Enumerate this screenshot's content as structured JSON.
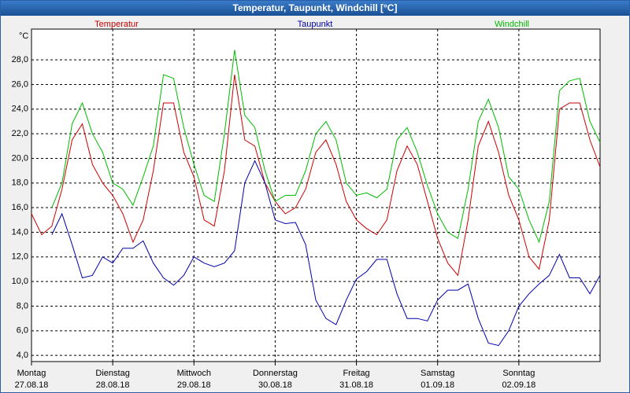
{
  "chart_data": {
    "type": "line",
    "title": "Temperatur, Taupunkt, Windchill [°C]",
    "ylabel": "°C",
    "x": [
      0,
      0.125,
      0.25,
      0.375,
      0.5,
      0.625,
      0.75,
      0.875,
      1,
      1.125,
      1.25,
      1.375,
      1.5,
      1.625,
      1.75,
      1.875,
      2,
      2.125,
      2.25,
      2.375,
      2.5,
      2.625,
      2.75,
      2.875,
      3,
      3.125,
      3.25,
      3.375,
      3.5,
      3.625,
      3.75,
      3.875,
      4,
      4.125,
      4.25,
      4.375,
      4.5,
      4.625,
      4.75,
      4.875,
      5,
      5.125,
      5.25,
      5.375,
      5.5,
      5.625,
      5.75,
      5.875,
      6,
      6.125,
      6.25,
      6.375,
      6.5,
      6.625,
      6.75,
      6.875,
      7
    ],
    "xlim": [
      0,
      7
    ],
    "xticks": [
      {
        "value": 0,
        "label": [
          "Montag",
          "27.08.18"
        ]
      },
      {
        "value": 1,
        "label": [
          "Dienstag",
          "28.08.18"
        ]
      },
      {
        "value": 2,
        "label": [
          "Mittwoch",
          "29.08.18"
        ]
      },
      {
        "value": 3,
        "label": [
          "Donnerstag",
          "30.08.18"
        ]
      },
      {
        "value": 4,
        "label": [
          "Freitag",
          "31.08.18"
        ]
      },
      {
        "value": 5,
        "label": [
          "Samstag",
          "01.09.18"
        ]
      },
      {
        "value": 6,
        "label": [
          "Sonntag",
          "02.09.18"
        ]
      }
    ],
    "ylim": [
      3.5,
      30.5
    ],
    "yticks": [
      {
        "value": 4,
        "label": "4,0"
      },
      {
        "value": 6,
        "label": "6,0"
      },
      {
        "value": 8,
        "label": "8,0"
      },
      {
        "value": 10,
        "label": "10,0"
      },
      {
        "value": 12,
        "label": "12,0"
      },
      {
        "value": 14,
        "label": "14,0"
      },
      {
        "value": 16,
        "label": "16,0"
      },
      {
        "value": 18,
        "label": "18,0"
      },
      {
        "value": 20,
        "label": "20,0"
      },
      {
        "value": 22,
        "label": "22,0"
      },
      {
        "value": 24,
        "label": "24,0"
      },
      {
        "value": 26,
        "label": "26,0"
      },
      {
        "value": 28,
        "label": "28,0"
      }
    ],
    "grid": true,
    "series": [
      {
        "name": "Temperatur",
        "color": "#cc0000",
        "values": [
          15.5,
          13.8,
          14.5,
          17.5,
          21.5,
          22.8,
          19.5,
          18.0,
          17.0,
          15.5,
          13.2,
          15.0,
          19.0,
          24.5,
          24.5,
          20.5,
          18.5,
          15.0,
          14.5,
          19.0,
          26.8,
          21.5,
          21.0,
          18.0,
          16.5,
          15.5,
          16.0,
          17.5,
          20.5,
          21.5,
          19.5,
          16.5,
          15.0,
          14.3,
          13.8,
          15.0,
          19.0,
          21.0,
          19.5,
          16.5,
          13.5,
          11.5,
          10.5,
          15.0,
          21.0,
          23.0,
          20.5,
          17.0,
          15.0,
          12.0,
          11.0,
          15.0,
          24.0,
          24.5,
          24.5,
          21.5,
          19.3
        ]
      },
      {
        "name": "Taupunkt",
        "color": "#0000aa",
        "values": [
          null,
          null,
          13.8,
          15.5,
          13.0,
          10.3,
          10.5,
          12.0,
          11.5,
          12.7,
          12.7,
          13.3,
          11.5,
          10.3,
          9.7,
          10.5,
          12.0,
          11.5,
          11.2,
          11.5,
          12.5,
          18.0,
          19.8,
          18.0,
          15.0,
          14.7,
          14.8,
          13.0,
          8.5,
          7.0,
          6.5,
          8.5,
          10.2,
          10.8,
          11.8,
          11.8,
          9.0,
          7.0,
          7.0,
          6.8,
          8.5,
          9.3,
          9.3,
          9.8,
          7.0,
          5.0,
          4.8,
          6.0,
          8.0,
          9.0,
          9.8,
          10.5,
          12.2,
          10.3,
          10.3,
          9.0,
          10.5
        ]
      },
      {
        "name": "Windchill",
        "color": "#00bb00",
        "values": [
          null,
          null,
          16.0,
          18.0,
          22.8,
          24.5,
          22.0,
          20.5,
          18.0,
          17.5,
          16.2,
          18.5,
          21.0,
          26.8,
          26.5,
          22.5,
          19.5,
          17.0,
          16.5,
          22.0,
          28.8,
          23.5,
          22.5,
          19.0,
          16.5,
          17.0,
          17.0,
          19.0,
          22.0,
          23.0,
          21.5,
          18.0,
          17.0,
          17.2,
          16.8,
          17.5,
          21.5,
          22.5,
          20.5,
          17.8,
          15.5,
          14.0,
          13.5,
          17.5,
          23.0,
          24.8,
          22.5,
          18.5,
          17.5,
          15.0,
          13.2,
          16.5,
          25.5,
          26.3,
          26.5,
          23.0,
          21.3
        ]
      }
    ]
  }
}
